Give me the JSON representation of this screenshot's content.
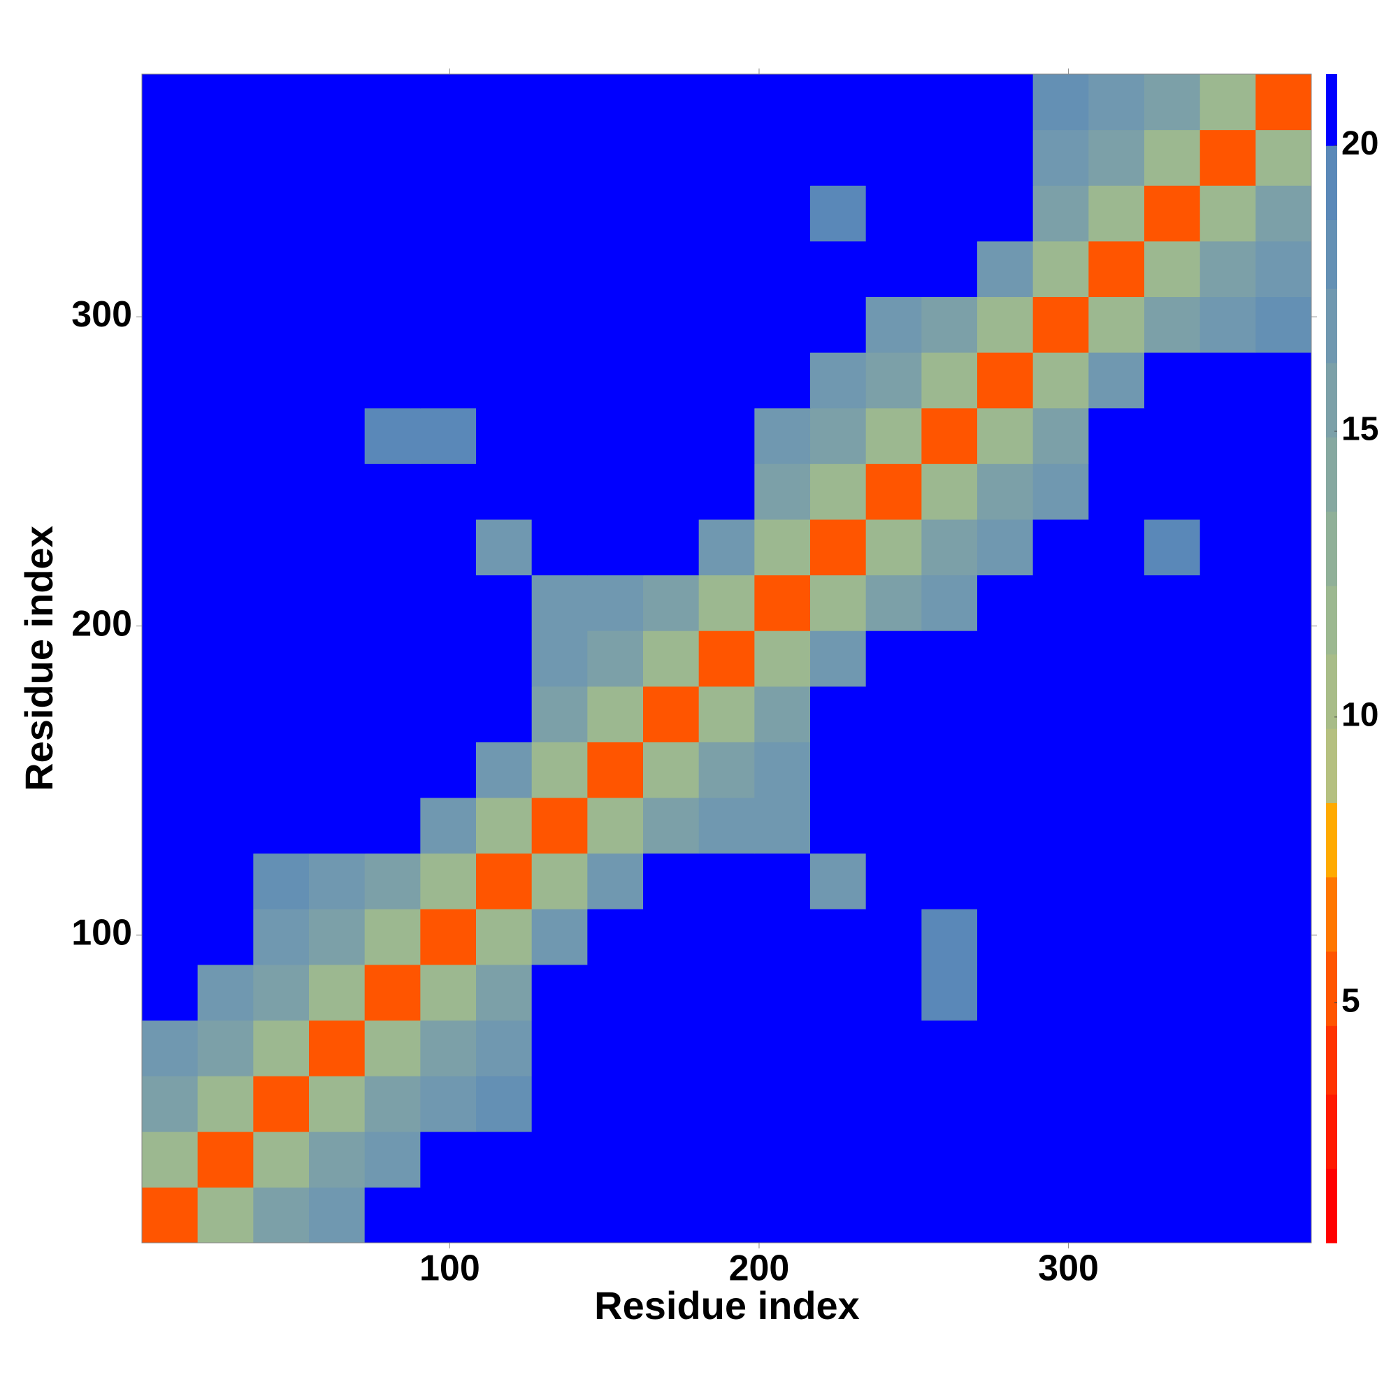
{
  "chart_data": {
    "type": "heatmap",
    "x_label": "Residue index",
    "y_label": "Residue index",
    "bin_edges": [
      0.5,
      18.5,
      36.5,
      54.5,
      72.5,
      90.5,
      108.5,
      126.5,
      144.5,
      162.5,
      180.5,
      198.5,
      216.5,
      234.5,
      252.5,
      270.5,
      288.5,
      306.5,
      324.5,
      342.5,
      360.5,
      378.5
    ],
    "xlim": [
      0.5,
      378.5
    ],
    "ylim": [
      0.5,
      378.5
    ],
    "xticks": [
      100,
      200,
      300
    ],
    "yticks": [
      100,
      200,
      300
    ],
    "zlim": [
      0.8,
      21.25
    ],
    "zticks": [
      5,
      10,
      15,
      20
    ],
    "colorscale": [
      [
        0.8,
        "#ff0000"
      ],
      [
        2.1,
        "#ff1a00"
      ],
      [
        3.4,
        "#ff3300"
      ],
      [
        4.6,
        "#ff5500"
      ],
      [
        5.9,
        "#ff7700"
      ],
      [
        7.2,
        "#ffaa00"
      ],
      [
        8.5,
        "#b5c080"
      ],
      [
        9.8,
        "#a8bc88"
      ],
      [
        11.1,
        "#9cb890"
      ],
      [
        12.3,
        "#90b098"
      ],
      [
        13.6,
        "#86a8a0"
      ],
      [
        14.9,
        "#7ca0a8"
      ],
      [
        16.2,
        "#7098b0"
      ],
      [
        17.5,
        "#6490b4"
      ],
      [
        18.7,
        "#5a88b8"
      ],
      [
        20.0,
        "#0000ff"
      ]
    ],
    "z": [
      [
        5,
        12,
        15,
        17,
        21,
        21,
        21,
        21,
        21,
        21,
        21,
        21,
        21,
        21,
        21,
        21,
        21,
        21,
        21,
        21,
        21
      ],
      [
        12,
        5,
        12,
        15,
        17,
        21,
        21,
        21,
        21,
        21,
        21,
        21,
        21,
        21,
        21,
        21,
        21,
        21,
        21,
        21,
        21
      ],
      [
        15,
        12,
        5,
        12,
        15,
        17,
        18,
        21,
        21,
        21,
        21,
        21,
        21,
        21,
        21,
        21,
        21,
        21,
        21,
        21,
        21
      ],
      [
        17,
        15,
        12,
        5,
        12,
        15,
        17,
        21,
        21,
        21,
        21,
        21,
        21,
        21,
        21,
        21,
        21,
        21,
        21,
        21,
        21
      ],
      [
        21,
        17,
        15,
        12,
        5,
        12,
        15,
        21,
        21,
        21,
        21,
        21,
        20,
        21,
        19,
        21,
        21,
        21,
        21,
        21,
        21
      ],
      [
        21,
        21,
        17,
        15,
        12,
        5,
        12,
        17,
        21,
        21,
        21,
        21,
        20,
        21,
        19,
        21,
        21,
        21,
        21,
        21,
        21
      ],
      [
        21,
        21,
        18,
        17,
        15,
        12,
        5,
        12,
        17,
        21,
        21,
        21,
        17,
        21,
        20,
        21,
        21,
        21,
        21,
        21,
        21
      ],
      [
        21,
        21,
        21,
        21,
        21,
        17,
        12,
        5,
        12,
        15,
        17,
        17,
        21,
        21,
        21,
        21,
        21,
        21,
        21,
        21,
        21
      ],
      [
        21,
        21,
        21,
        21,
        21,
        21,
        17,
        12,
        5,
        12,
        15,
        17,
        21,
        21,
        21,
        21,
        21,
        21,
        21,
        21,
        21
      ],
      [
        21,
        21,
        21,
        21,
        21,
        21,
        21,
        15,
        12,
        5,
        12,
        15,
        21,
        21,
        21,
        21,
        21,
        21,
        21,
        21,
        21
      ],
      [
        21,
        21,
        21,
        21,
        21,
        21,
        21,
        17,
        15,
        12,
        5,
        12,
        17,
        21,
        21,
        21,
        21,
        21,
        21,
        21,
        21
      ],
      [
        21,
        21,
        21,
        21,
        21,
        21,
        21,
        17,
        17,
        15,
        12,
        5,
        12,
        15,
        17,
        21,
        21,
        21,
        21,
        21,
        21
      ],
      [
        21,
        21,
        21,
        21,
        20,
        20,
        17,
        21,
        21,
        21,
        17,
        12,
        5,
        12,
        16,
        17,
        21,
        21,
        19,
        21,
        21
      ],
      [
        21,
        21,
        21,
        21,
        21,
        21,
        21,
        21,
        21,
        21,
        21,
        15,
        12,
        5,
        12,
        15,
        17,
        21,
        21,
        21,
        21
      ],
      [
        21,
        21,
        21,
        21,
        19,
        19,
        20,
        21,
        21,
        21,
        21,
        17,
        16,
        12,
        5,
        12,
        15,
        21,
        21,
        21,
        21
      ],
      [
        21,
        21,
        21,
        21,
        21,
        21,
        21,
        21,
        21,
        21,
        21,
        21,
        17,
        15,
        12,
        5,
        12,
        17,
        21,
        21,
        21
      ],
      [
        21,
        21,
        21,
        21,
        21,
        21,
        21,
        21,
        21,
        21,
        21,
        21,
        21,
        17,
        15,
        12,
        5,
        12,
        15,
        17,
        18
      ],
      [
        21,
        21,
        21,
        21,
        21,
        21,
        21,
        21,
        21,
        21,
        21,
        21,
        21,
        21,
        21,
        17,
        12,
        5,
        12,
        15,
        17
      ],
      [
        21,
        21,
        21,
        21,
        21,
        21,
        21,
        21,
        21,
        21,
        21,
        21,
        19,
        21,
        21,
        21,
        15,
        12,
        5,
        12,
        15
      ],
      [
        21,
        21,
        21,
        21,
        21,
        21,
        21,
        21,
        21,
        21,
        21,
        21,
        21,
        21,
        21,
        21,
        17,
        15,
        12,
        5,
        12
      ],
      [
        21,
        21,
        21,
        21,
        21,
        21,
        21,
        21,
        21,
        21,
        21,
        21,
        21,
        21,
        21,
        21,
        18,
        17,
        15,
        12,
        5
      ]
    ]
  }
}
